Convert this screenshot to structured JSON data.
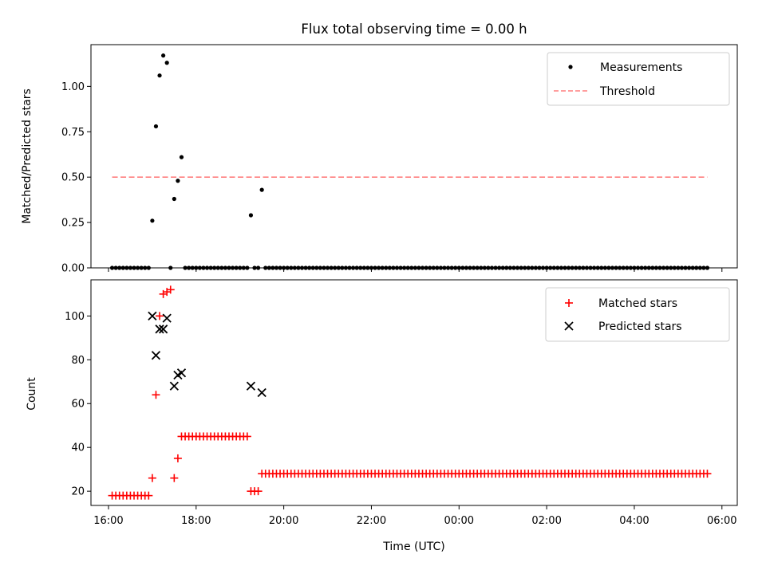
{
  "chart_data": [
    {
      "type": "scatter",
      "title": "Flux total observing time = 0.00 h",
      "ylabel": "Matched/Predicted stars",
      "xlabel": "",
      "ylim": [
        0,
        1.23
      ],
      "xlim_hours": [
        15.6,
        30.35
      ],
      "yticks": [
        0.0,
        0.25,
        0.5,
        0.75,
        1.0
      ],
      "ytick_labels": [
        "0.00",
        "0.25",
        "0.50",
        "0.75",
        "1.00"
      ],
      "legend_position": "top-right",
      "legend": [
        "Measurements",
        "Threshold"
      ],
      "threshold": {
        "name": "Threshold",
        "value": 0.5,
        "x_start": "16:05",
        "x_end": "05:40",
        "color": "#ff7f7f",
        "style": "dashed"
      },
      "series": [
        {
          "name": "Measurements",
          "color": "#000000",
          "marker": "dot",
          "points": [
            [
              "17:00",
              0.26
            ],
            [
              "17:05",
              0.78
            ],
            [
              "17:10",
              1.06
            ],
            [
              "17:15",
              1.17
            ],
            [
              "17:20",
              1.13
            ],
            [
              "17:30",
              0.38
            ],
            [
              "17:35",
              0.48
            ],
            [
              "17:40",
              0.61
            ],
            [
              "19:15",
              0.29
            ],
            [
              "19:30",
              0.43
            ]
          ],
          "zero_ranges": [
            {
              "start": "16:05",
              "end": "16:55",
              "step_min": 5,
              "value": 0
            },
            {
              "start": "17:25",
              "end": "17:25",
              "step_min": 5,
              "value": 0
            },
            {
              "start": "17:45",
              "end": "19:10",
              "step_min": 5,
              "value": 0
            },
            {
              "start": "19:20",
              "end": "19:25",
              "step_min": 5,
              "value": 0
            },
            {
              "start": "19:35",
              "end": "05:40",
              "step_min": 5,
              "value": 0
            }
          ]
        }
      ]
    },
    {
      "type": "scatter",
      "title": "",
      "ylabel": "Count",
      "xlabel": "Time (UTC)",
      "ylim": [
        13.5,
        116.5
      ],
      "xlim_hours": [
        15.6,
        30.35
      ],
      "yticks": [
        20,
        40,
        60,
        80,
        100
      ],
      "ytick_labels": [
        "20",
        "40",
        "60",
        "80",
        "100"
      ],
      "xticks": [
        "16:00",
        "18:00",
        "20:00",
        "22:00",
        "00:00",
        "02:00",
        "04:00",
        "06:00"
      ],
      "legend_position": "top-right",
      "legend": [
        "Matched stars",
        "Predicted stars"
      ],
      "series": [
        {
          "name": "Matched stars",
          "color": "#ff0000",
          "marker": "plus",
          "points": [
            [
              "17:00",
              26
            ],
            [
              "17:05",
              64
            ],
            [
              "17:10",
              100
            ],
            [
              "17:15",
              110
            ],
            [
              "17:20",
              111
            ],
            [
              "17:25",
              112
            ],
            [
              "17:30",
              26
            ],
            [
              "17:35",
              35
            ]
          ],
          "ranges": [
            {
              "start": "16:05",
              "end": "16:55",
              "step_min": 5,
              "value": 18
            },
            {
              "start": "17:40",
              "end": "19:10",
              "step_min": 5,
              "value": 45
            },
            {
              "start": "19:15",
              "end": "19:25",
              "step_min": 5,
              "value": 20
            },
            {
              "start": "19:30",
              "end": "05:40",
              "step_min": 5,
              "value": 28
            }
          ]
        },
        {
          "name": "Predicted stars",
          "color": "#000000",
          "marker": "x",
          "points": [
            [
              "17:00",
              100
            ],
            [
              "17:05",
              82
            ],
            [
              "17:10",
              94
            ],
            [
              "17:15",
              94
            ],
            [
              "17:20",
              99
            ],
            [
              "17:30",
              68
            ],
            [
              "17:35",
              73
            ],
            [
              "17:40",
              74
            ],
            [
              "19:15",
              68
            ],
            [
              "19:30",
              65
            ]
          ]
        }
      ]
    }
  ]
}
